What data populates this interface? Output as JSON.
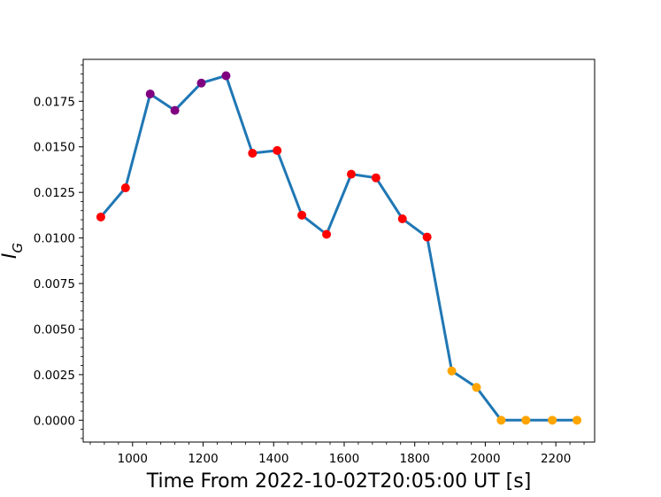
{
  "chart_data": {
    "type": "line",
    "title": "",
    "xlabel": "Time From 2022-10-02T20:05:00 UT [s]",
    "ylabel_main": "I",
    "ylabel_sub": "G",
    "xlim": [
      860,
      2310
    ],
    "ylim": [
      -0.0012,
      0.0198
    ],
    "xticks": [
      1000,
      1200,
      1400,
      1600,
      1800,
      2000,
      2200
    ],
    "yticks": [
      0.0,
      0.0025,
      0.005,
      0.0075,
      0.01,
      0.0125,
      0.015,
      0.0175
    ],
    "ytick_labels": [
      "0.0000",
      "0.0025",
      "0.0050",
      "0.0075",
      "0.0100",
      "0.0125",
      "0.0150",
      "0.0175"
    ],
    "grid": false,
    "line_color": "#1f77b4",
    "x": [
      910,
      980,
      1050,
      1120,
      1195,
      1265,
      1340,
      1410,
      1480,
      1550,
      1620,
      1690,
      1765,
      1835,
      1905,
      1975,
      2045,
      2115,
      2190,
      2260
    ],
    "values": [
      0.01115,
      0.01275,
      0.0179,
      0.017,
      0.0185,
      0.0189,
      0.01465,
      0.0148,
      0.01125,
      0.0102,
      0.0135,
      0.0133,
      0.01105,
      0.01005,
      0.0027,
      0.0018,
      0.0,
      0.0,
      0.0,
      0.0
    ],
    "point_colors": [
      "red",
      "red",
      "purple",
      "purple",
      "purple",
      "purple",
      "red",
      "red",
      "red",
      "red",
      "red",
      "red",
      "red",
      "red",
      "orange",
      "orange",
      "orange",
      "orange",
      "orange",
      "orange"
    ]
  }
}
